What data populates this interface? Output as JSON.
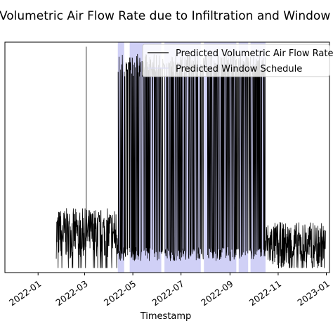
{
  "chart_data": {
    "type": "line",
    "title": "Predicted Volumetric Air Flow Rate due to Infiltration and Window Operation",
    "xlabel": "Timestamp",
    "ylabel": "",
    "xlim": [
      "2021-11-20",
      "2023-01-05"
    ],
    "ylim": [
      0,
      1
    ],
    "grid": false,
    "legend": {
      "placement": "top-right",
      "entries": [
        "Predicted Volumetric Air Flow Rate",
        "Predicted Window Schedule"
      ]
    },
    "x_ticks": [
      "2022-01",
      "2022-03",
      "2022-05",
      "2022-07",
      "2022-09",
      "2022-11",
      "2023-01"
    ],
    "series": [
      {
        "name": "Predicted Volumetric Air Flow Rate",
        "color": "#000000",
        "segments": [
          {
            "start": "2022-01-24",
            "end": "2022-04-12",
            "level": 0.17,
            "spread": 0.11,
            "mode": "noise"
          },
          {
            "start": "2022-03-02",
            "end": "2022-03-04",
            "level": 0.98,
            "spread": 0.0,
            "mode": "spike"
          },
          {
            "start": "2022-04-12",
            "end": "2022-10-16",
            "level": 0.9,
            "spread": 0.05,
            "mode": "switching"
          },
          {
            "start": "2022-10-16",
            "end": "2022-12-31",
            "level": 0.12,
            "spread": 0.1,
            "mode": "noise"
          }
        ]
      },
      {
        "name": "Predicted Window Schedule",
        "color": "#aaaaee",
        "open_periods": [
          [
            "2022-04-12",
            "2022-04-20"
          ],
          [
            "2022-04-27",
            "2022-06-06"
          ],
          [
            "2022-06-10",
            "2022-07-26"
          ],
          [
            "2022-07-30",
            "2022-09-09"
          ],
          [
            "2022-09-12",
            "2022-09-24"
          ],
          [
            "2022-09-27",
            "2022-10-16"
          ]
        ]
      }
    ]
  }
}
